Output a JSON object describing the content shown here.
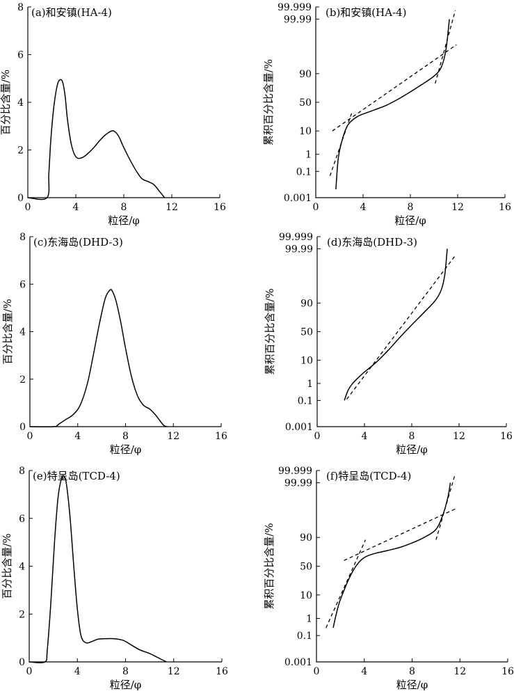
{
  "chart_data": [
    {
      "id": "a",
      "type": "line",
      "title": "(a)和安镇(HA-4)",
      "xlabel": "粒径/φ",
      "ylabel": "百分比含量/%",
      "xlim": [
        0,
        16
      ],
      "ylim": [
        0,
        8
      ],
      "xticks": [
        "0",
        "4",
        "8",
        "12",
        "16"
      ],
      "yticks": [
        "0",
        "2",
        "4",
        "6",
        "8"
      ],
      "series": [
        {
          "x": [
            0,
            1.6,
            1.75,
            1.9,
            2.1,
            2.3,
            2.5,
            2.7,
            2.9,
            3.1,
            3.3,
            3.6,
            3.9,
            4.2,
            4.6,
            5.0,
            5.5,
            6.0,
            6.5,
            7.0,
            7.3,
            7.6,
            8.0,
            8.5,
            9.0,
            9.5,
            10.0,
            10.5,
            11.0,
            11.4
          ],
          "y": [
            0,
            0,
            1.0,
            2.3,
            3.5,
            4.3,
            4.8,
            4.95,
            4.85,
            4.3,
            3.3,
            2.3,
            1.8,
            1.65,
            1.7,
            1.85,
            2.1,
            2.4,
            2.65,
            2.8,
            2.75,
            2.55,
            2.1,
            1.6,
            1.15,
            0.8,
            0.68,
            0.55,
            0.25,
            0
          ]
        }
      ]
    },
    {
      "id": "b",
      "type": "line",
      "title": "(b)和安镇(HA-4)",
      "xlabel": "粒径/φ",
      "ylabel": "累积百分比含量/%",
      "xlim": [
        0,
        16
      ],
      "yscale": "probability",
      "xticks": [
        "0",
        "4",
        "8",
        "12",
        "16"
      ],
      "yticks": [
        "0.001",
        "0.1",
        "1",
        "10",
        "50",
        "90",
        "99.99",
        "99.999"
      ],
      "series": [
        {
          "x": [
            1.7,
            1.9,
            2.2,
            2.6,
            3.0,
            3.5,
            4.0,
            5.0,
            6.0,
            7.0,
            8.0,
            9.0,
            10.0,
            10.6,
            11.0,
            11.3
          ],
          "y": [
            0.005,
            0.6,
            4,
            13,
            20,
            26,
            30,
            37,
            45,
            56,
            68,
            79,
            88,
            94,
            99,
            99.99
          ]
        }
      ],
      "fit_lines": [
        {
          "x": [
            1.2,
            3.1
          ],
          "y": [
            0.05,
            35
          ]
        },
        {
          "x": [
            1.4,
            11.9
          ],
          "y": [
            10,
            99.5
          ]
        },
        {
          "x": [
            10.1,
            11.8
          ],
          "y": [
            80,
            99.998
          ]
        }
      ]
    },
    {
      "id": "c",
      "type": "line",
      "title": "(c)东海岛(DHD-3)",
      "xlabel": "粒径/φ",
      "ylabel": "百分比含量/%",
      "xlim": [
        0,
        16
      ],
      "ylim": [
        0,
        8
      ],
      "xticks": [
        "0",
        "4",
        "8",
        "12",
        "16"
      ],
      "yticks": [
        "0",
        "2",
        "4",
        "6",
        "8"
      ],
      "series": [
        {
          "x": [
            0,
            2.0,
            2.4,
            3.0,
            3.6,
            4.2,
            4.8,
            5.3,
            5.8,
            6.3,
            6.7,
            6.9,
            7.2,
            7.6,
            8.0,
            8.5,
            9.0,
            9.5,
            10.0,
            10.5,
            10.8,
            11.2,
            11.5
          ],
          "y": [
            0,
            0,
            0.1,
            0.3,
            0.5,
            0.9,
            1.8,
            3.0,
            4.3,
            5.4,
            5.75,
            5.7,
            5.3,
            4.4,
            3.3,
            2.1,
            1.3,
            0.9,
            0.75,
            0.5,
            0.3,
            0.05,
            0
          ]
        }
      ]
    },
    {
      "id": "d",
      "type": "line",
      "title": "(d)东海岛(DHD-3)",
      "xlabel": "粒径/φ",
      "ylabel": "累积百分比含量/%",
      "xlim": [
        0,
        16
      ],
      "yscale": "probability",
      "xticks": [
        "0",
        "4",
        "8",
        "12",
        "16"
      ],
      "yticks": [
        "0.001",
        "0.1",
        "1",
        "10",
        "50",
        "90",
        "99.99",
        "99.999"
      ],
      "series": [
        {
          "x": [
            2.3,
            2.6,
            3.0,
            3.5,
            4.0,
            5.0,
            6.0,
            7.0,
            8.0,
            9.0,
            10.0,
            10.5,
            10.8,
            11.0
          ],
          "y": [
            0.1,
            0.4,
            1.0,
            2.0,
            3.5,
            8.5,
            20,
            40,
            62,
            80,
            92,
            97,
            99.5,
            99.99
          ]
        }
      ],
      "fit_lines": [
        {
          "x": [
            2.5,
            11.7
          ],
          "y": [
            0.12,
            99.97
          ]
        }
      ]
    },
    {
      "id": "e",
      "type": "line",
      "title": "(e)特呈岛(TCD-4)",
      "xlabel": "粒径/φ",
      "ylabel": "百分比含量/%",
      "xlim": [
        0,
        16
      ],
      "ylim": [
        0,
        8
      ],
      "xticks": [
        "0",
        "4",
        "8",
        "12",
        "16"
      ],
      "yticks": [
        "0",
        "2",
        "4",
        "6",
        "8"
      ],
      "series": [
        {
          "x": [
            0,
            1.3,
            1.5,
            1.8,
            2.1,
            2.4,
            2.7,
            2.9,
            3.1,
            3.4,
            3.7,
            4.0,
            4.3,
            4.7,
            5.2,
            5.7,
            6.3,
            7.0,
            7.8,
            8.5,
            9.2,
            10.0,
            10.8,
            11.4
          ],
          "y": [
            0,
            0,
            0.5,
            2.5,
            5.0,
            6.9,
            7.7,
            7.75,
            7.4,
            6.0,
            4.0,
            2.2,
            1.1,
            0.8,
            0.85,
            0.95,
            0.97,
            0.97,
            0.9,
            0.7,
            0.5,
            0.35,
            0.15,
            0
          ]
        }
      ]
    },
    {
      "id": "f",
      "type": "line",
      "title": "(f)特呈岛(TCD-4)",
      "xlabel": "粒径/φ",
      "ylabel": "累积百分比含量/%",
      "xlim": [
        0,
        16
      ],
      "yscale": "probability",
      "xticks": [
        "0",
        "4",
        "8",
        "12",
        "16"
      ],
      "yticks": [
        "0.001",
        "0.1",
        "1",
        "10",
        "50",
        "90",
        "99.99",
        "99.999"
      ],
      "series": [
        {
          "x": [
            1.4,
            1.6,
            1.9,
            2.3,
            2.8,
            3.3,
            3.8,
            4.3,
            5.0,
            6.0,
            7.0,
            8.0,
            9.0,
            10.0,
            10.6,
            11.0,
            11.2
          ],
          "y": [
            0.3,
            1.2,
            5,
            14,
            32,
            50,
            62,
            68,
            72,
            76,
            80,
            85,
            90,
            95,
            99,
            99.9,
            99.99
          ]
        }
      ],
      "fit_lines": [
        {
          "x": [
            0.8,
            4.1
          ],
          "y": [
            0.3,
            88
          ]
        },
        {
          "x": [
            2.3,
            11.7
          ],
          "y": [
            60,
            99.5
          ]
        },
        {
          "x": [
            10.0,
            11.6
          ],
          "y": [
            88,
            99.998
          ]
        }
      ]
    }
  ]
}
